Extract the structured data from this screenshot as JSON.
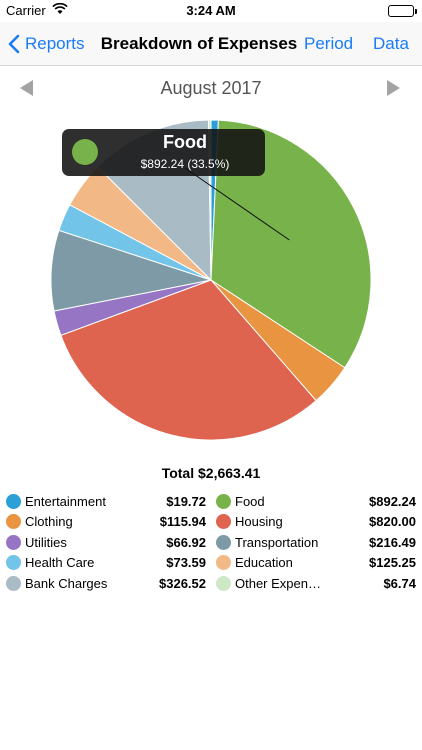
{
  "status_bar": {
    "carrier": "Carrier",
    "time": "3:24 AM"
  },
  "nav": {
    "back_label": "Reports",
    "title": "Breakdown of Expenses",
    "period_label": "Period",
    "data_label": "Data"
  },
  "month": {
    "label": "August 2017"
  },
  "callout": {
    "title": "Food",
    "subtitle": "$892.24 (33.5%)",
    "color": "#78b24a"
  },
  "total": {
    "label": "Total $2,663.41"
  },
  "legend": [
    {
      "name": "Entertainment",
      "amount": "$19.72",
      "color": "#2a9fd8"
    },
    {
      "name": "Food",
      "amount": "$892.24",
      "color": "#78b24a"
    },
    {
      "name": "Clothing",
      "amount": "$115.94",
      "color": "#e89440"
    },
    {
      "name": "Housing",
      "amount": "$820.00",
      "color": "#de6450"
    },
    {
      "name": "Utilities",
      "amount": "$66.92",
      "color": "#9575c4"
    },
    {
      "name": "Transportation",
      "amount": "$216.49",
      "color": "#7d9aa6"
    },
    {
      "name": "Health Care",
      "amount": "$73.59",
      "color": "#72c5e8"
    },
    {
      "name": "Education",
      "amount": "$125.25",
      "color": "#f2b886"
    },
    {
      "name": "Bank Charges",
      "amount": "$326.52",
      "color": "#a9bcc6"
    },
    {
      "name": "Other Expen…",
      "amount": "$6.74",
      "color": "#cce8c4"
    }
  ],
  "chart_data": {
    "type": "pie",
    "title": "",
    "start": "12 o'clock",
    "direction": "clockwise",
    "slices": [
      {
        "label": "Entertainment",
        "value": 19.72,
        "color": "#2a9fd8"
      },
      {
        "label": "Food",
        "value": 892.24,
        "color": "#78b24a"
      },
      {
        "label": "Clothing",
        "value": 115.94,
        "color": "#e89440"
      },
      {
        "label": "Housing",
        "value": 820.0,
        "color": "#de6450"
      },
      {
        "label": "Utilities",
        "value": 66.92,
        "color": "#9575c4"
      },
      {
        "label": "Transportation",
        "value": 216.49,
        "color": "#7d9aa6"
      },
      {
        "label": "Health Care",
        "value": 73.59,
        "color": "#72c5e8"
      },
      {
        "label": "Education",
        "value": 125.25,
        "color": "#f2b886"
      },
      {
        "label": "Bank Charges",
        "value": 326.52,
        "color": "#a9bcc6"
      },
      {
        "label": "Other Expenses",
        "value": 6.74,
        "color": "#cce8c4"
      }
    ],
    "highlighted": "Food"
  }
}
